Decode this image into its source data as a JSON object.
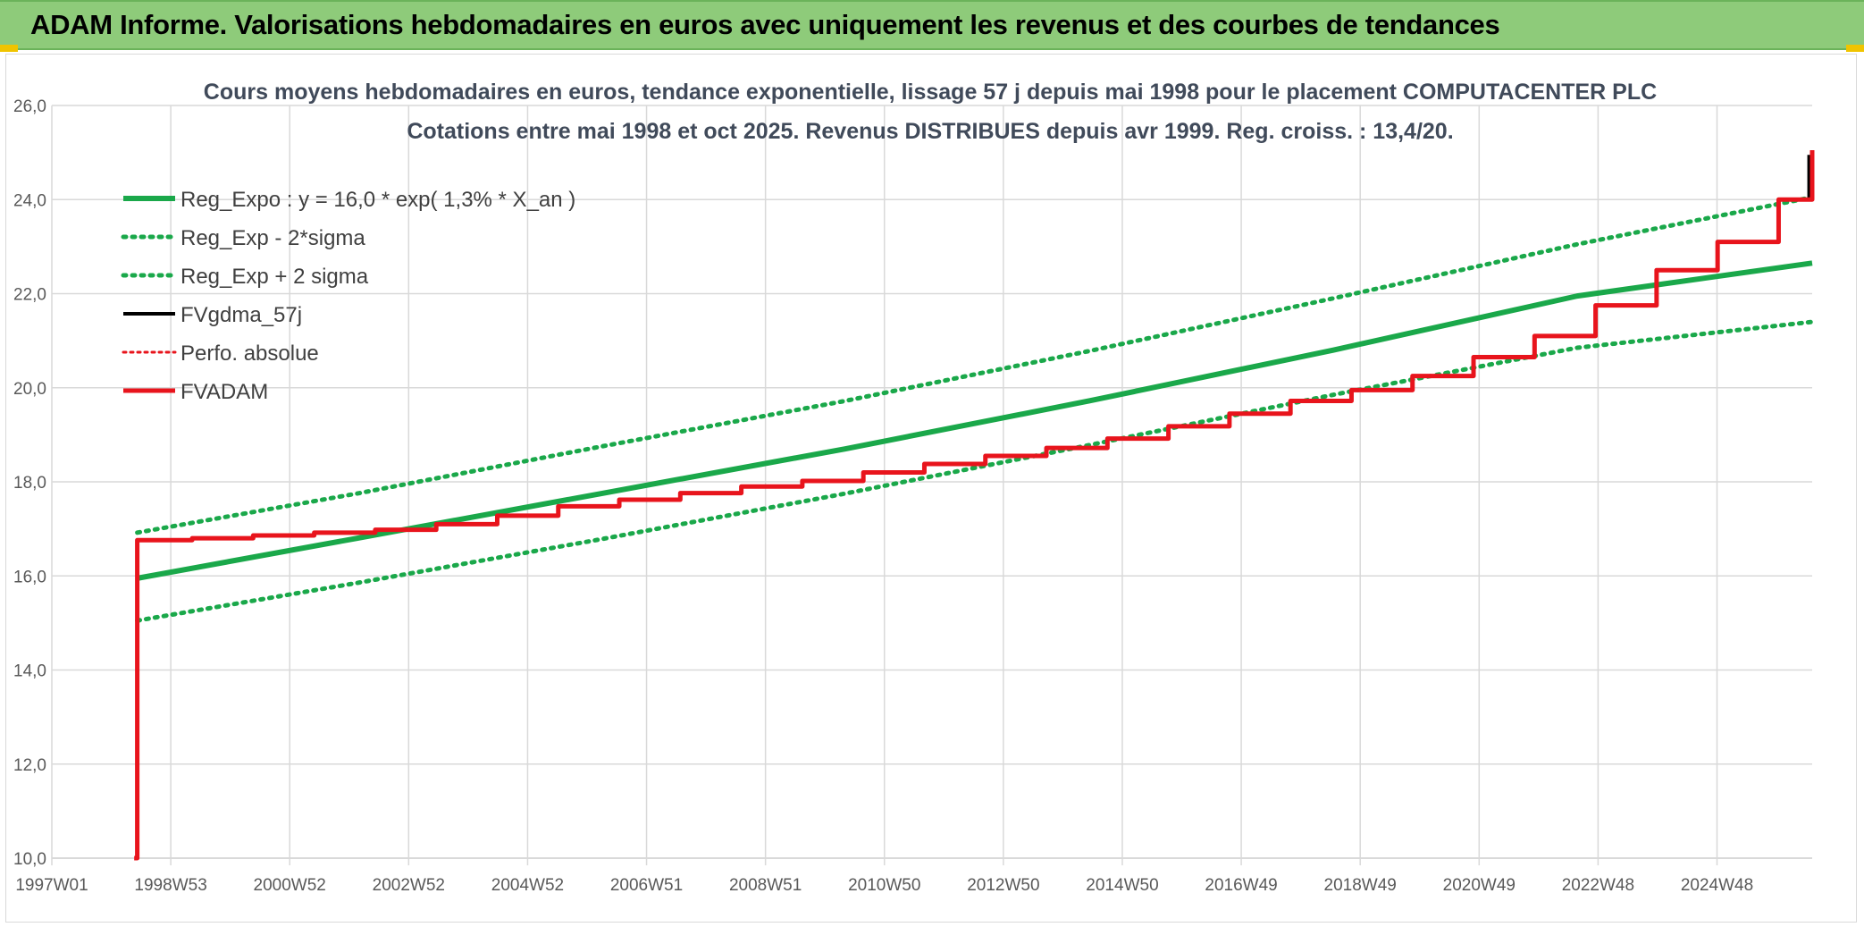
{
  "header": {
    "title": "ADAM Informe. Valorisations hebdomadaires en euros avec uniquement les revenus et des courbes de tendances"
  },
  "colors": {
    "header_bg": "#8ecb7a",
    "reg_green": "#1aa84a",
    "perf_red": "#e8141c",
    "black": "#000000",
    "grid": "#d9d9d9"
  },
  "chart_data": {
    "type": "line",
    "title": "Cours moyens hebdomadaires en euros, tendance exponentielle, lissage 57 j depuis mai 1998 pour le placement COMPUTACENTER PLC",
    "subtitle": "Cotations entre mai 1998 et oct 2025. Revenus DISTRIBUES depuis avr 1999. Reg. croiss. : 13,4/20.",
    "xlabel": "",
    "ylabel": "",
    "ylim": [
      10,
      26
    ],
    "y_ticks": [
      "10,0",
      "12,0",
      "14,0",
      "16,0",
      "18,0",
      "20,0",
      "22,0",
      "24,0",
      "26,0"
    ],
    "x_tick_labels": [
      "1997W01",
      "1998W53",
      "2000W52",
      "2002W52",
      "2004W52",
      "2006W51",
      "2008W51",
      "2010W50",
      "2012W50",
      "2014W50",
      "2016W49",
      "2018W49",
      "2020W49",
      "2022W48",
      "2024W48"
    ],
    "xlim": [
      1997.0,
      2025.85
    ],
    "grid": true,
    "legend_position": "top-left",
    "series": [
      {
        "name": "Reg_Expo : y = 16,0 * exp( 1,3% *  X_an )",
        "style": "solid-green",
        "x": [
          1998.4,
          2002.0,
          2006.0,
          2010.0,
          2014.0,
          2018.0,
          2022.0,
          2025.85
        ],
        "values": [
          15.95,
          16.8,
          17.75,
          18.7,
          19.72,
          20.8,
          21.95,
          22.65
        ]
      },
      {
        "name": "Reg_Exp - 2*sigma",
        "style": "dotted-green",
        "x": [
          1998.4,
          2002.0,
          2006.0,
          2010.0,
          2014.0,
          2018.0,
          2022.0,
          2025.85
        ],
        "values": [
          15.05,
          15.85,
          16.78,
          17.75,
          18.78,
          19.85,
          20.85,
          21.4
        ]
      },
      {
        "name": "Reg_Exp + 2 sigma",
        "style": "dotted-green",
        "x": [
          1998.4,
          2002.0,
          2006.0,
          2010.0,
          2014.0,
          2018.0,
          2022.0,
          2025.85
        ],
        "values": [
          16.92,
          17.75,
          18.75,
          19.72,
          20.78,
          21.9,
          23.05,
          24.05
        ]
      },
      {
        "name": "FVgdma_57j",
        "style": "solid-black",
        "x": [
          1998.4,
          1999.3,
          2000.3,
          2001.3,
          2002.3,
          2003.3,
          2004.3,
          2005.3,
          2006.3,
          2007.3,
          2008.3,
          2009.3,
          2010.3,
          2011.3,
          2012.3,
          2013.3,
          2014.3,
          2015.3,
          2016.3,
          2017.3,
          2018.3,
          2019.3,
          2020.3,
          2021.3,
          2022.3,
          2023.3,
          2024.3,
          2025.3,
          2025.8
        ],
        "values": [
          16.76,
          16.8,
          16.86,
          16.92,
          16.98,
          17.1,
          17.28,
          17.48,
          17.62,
          17.76,
          17.9,
          18.02,
          18.2,
          18.38,
          18.55,
          18.72,
          18.92,
          19.18,
          19.45,
          19.72,
          19.95,
          20.25,
          20.65,
          21.1,
          21.75,
          22.5,
          23.1,
          24.0,
          24.95
        ]
      },
      {
        "name": "Perfo. absolue",
        "style": "dotted-red",
        "x": [
          1998.4,
          2025.85
        ],
        "values": [
          16.76,
          25.05
        ]
      },
      {
        "name": "FVADAM",
        "style": "solid-red",
        "x": [
          1998.35,
          1998.4,
          1999.3,
          2000.3,
          2001.3,
          2002.3,
          2003.3,
          2004.3,
          2005.3,
          2006.3,
          2007.3,
          2008.3,
          2009.3,
          2010.3,
          2011.3,
          2012.3,
          2013.3,
          2014.3,
          2015.3,
          2016.3,
          2017.3,
          2018.3,
          2019.3,
          2020.3,
          2021.3,
          2022.3,
          2023.3,
          2024.3,
          2025.3,
          2025.85
        ],
        "values": [
          10.0,
          16.76,
          16.8,
          16.86,
          16.92,
          16.98,
          17.1,
          17.28,
          17.48,
          17.62,
          17.76,
          17.9,
          18.02,
          18.2,
          18.38,
          18.55,
          18.72,
          18.92,
          19.18,
          19.45,
          19.72,
          19.95,
          20.25,
          20.65,
          21.1,
          21.75,
          22.5,
          23.1,
          24.0,
          25.05
        ]
      }
    ]
  }
}
